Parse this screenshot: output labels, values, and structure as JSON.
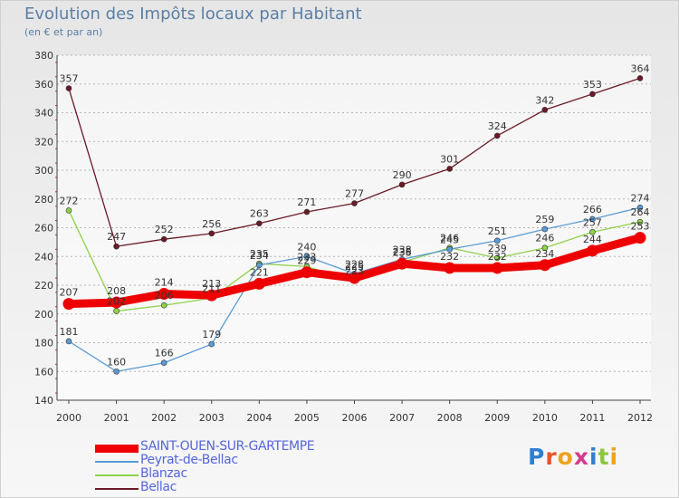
{
  "header": {
    "title": "Evolution des Impôts locaux par Habitant",
    "subtitle": "(en € et par an)"
  },
  "logo": {
    "text": "Proxiti"
  },
  "chart_data": {
    "type": "line",
    "title": "Evolution des Impôts locaux par Habitant",
    "subtitle": "(en € et par an)",
    "xlabel": "",
    "ylabel": "",
    "x": [
      "2000",
      "2001",
      "2002",
      "2003",
      "2004",
      "2005",
      "2006",
      "2007",
      "2008",
      "2009",
      "2010",
      "2011",
      "2012"
    ],
    "ylim": [
      140,
      380
    ],
    "yticks": [
      140,
      160,
      180,
      200,
      220,
      240,
      260,
      280,
      300,
      320,
      340,
      360,
      380
    ],
    "grid": "horizontal",
    "legend": "bottom-left",
    "series": [
      {
        "name": "Bellac",
        "color": "#6b1a26",
        "values": [
          357,
          247,
          252,
          256,
          263,
          271,
          277,
          290,
          301,
          324,
          342,
          353,
          364
        ]
      },
      {
        "name": "Blanzac",
        "color": "#8fd24b",
        "values": [
          272,
          202,
          206,
          211,
          235,
          233,
          223,
          236,
          246,
          239,
          246,
          257,
          264
        ]
      },
      {
        "name": "Peyrat-de-Bellac",
        "color": "#5b9bd5",
        "values": [
          181,
          160,
          166,
          179,
          234,
          240,
          228,
          238,
          245,
          251,
          259,
          266,
          274
        ]
      },
      {
        "name": "SAINT-OUEN-SUR-GARTEMPE",
        "color": "#ee0000",
        "values": [
          207,
          208,
          214,
          213,
          221,
          229,
          225,
          235,
          232,
          232,
          234,
          244,
          253
        ]
      }
    ],
    "legend_order": [
      "SAINT-OUEN-SUR-GARTEMPE",
      "Peyrat-de-Bellac",
      "Blanzac",
      "Bellac"
    ]
  }
}
